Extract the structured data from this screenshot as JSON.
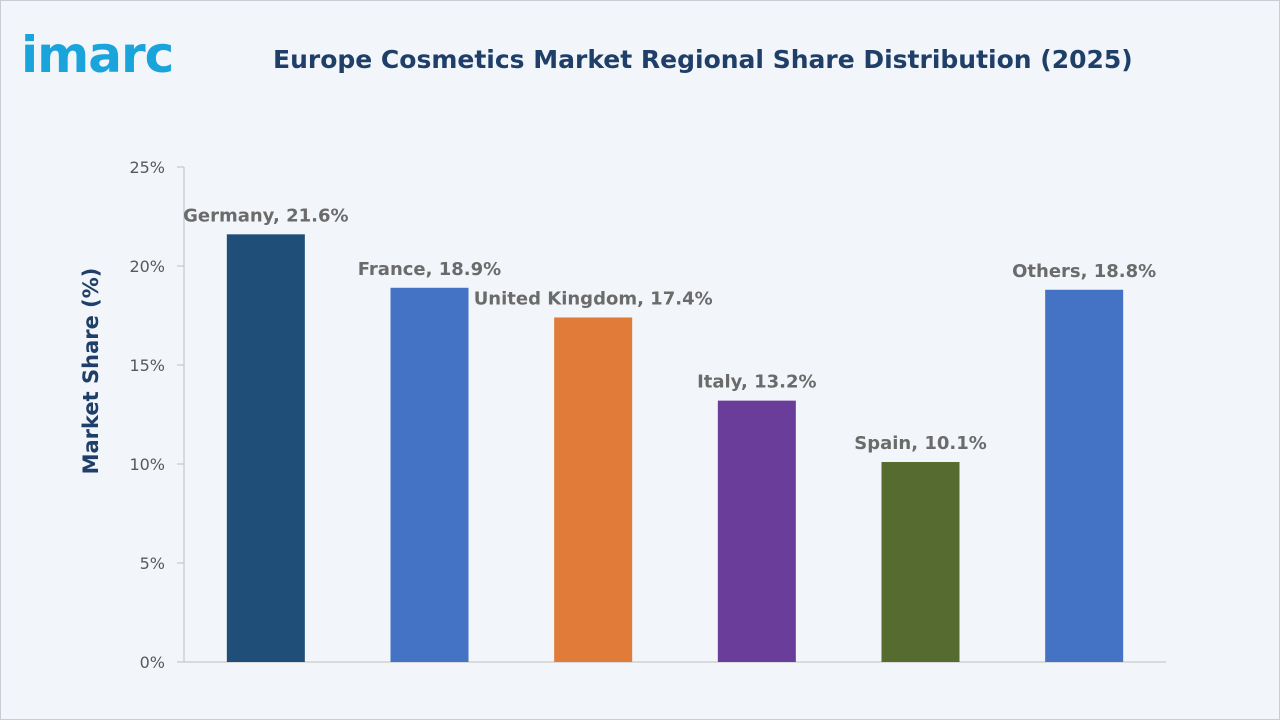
{
  "brand": {
    "logo_text": "imarc",
    "logo_color": "#1aa4dc"
  },
  "chart_data": {
    "type": "bar",
    "title": "Europe Cosmetics Market Regional Share Distribution (2025)",
    "xlabel": "",
    "ylabel": "Market Share (%)",
    "ylim": [
      0,
      25
    ],
    "yticks": [
      0,
      5,
      10,
      15,
      20,
      25
    ],
    "ytick_labels": [
      "0%",
      "5%",
      "10%",
      "15%",
      "20%",
      "25%"
    ],
    "grid": false,
    "categories": [
      "Germany",
      "France",
      "United Kingdom",
      "Italy",
      "Spain",
      "Others"
    ],
    "values": [
      21.6,
      18.9,
      17.4,
      13.2,
      10.1,
      18.8
    ],
    "data_labels": [
      "Germany, 21.6%",
      "France, 18.9%",
      "United Kingdom, 17.4%",
      "Italy, 13.2%",
      "Spain, 10.1%",
      "Others, 18.8%"
    ],
    "colors": [
      "#1f4e79",
      "#4472c4",
      "#e07b39",
      "#6a3d9a",
      "#556b2f",
      "#4472c4"
    ]
  }
}
